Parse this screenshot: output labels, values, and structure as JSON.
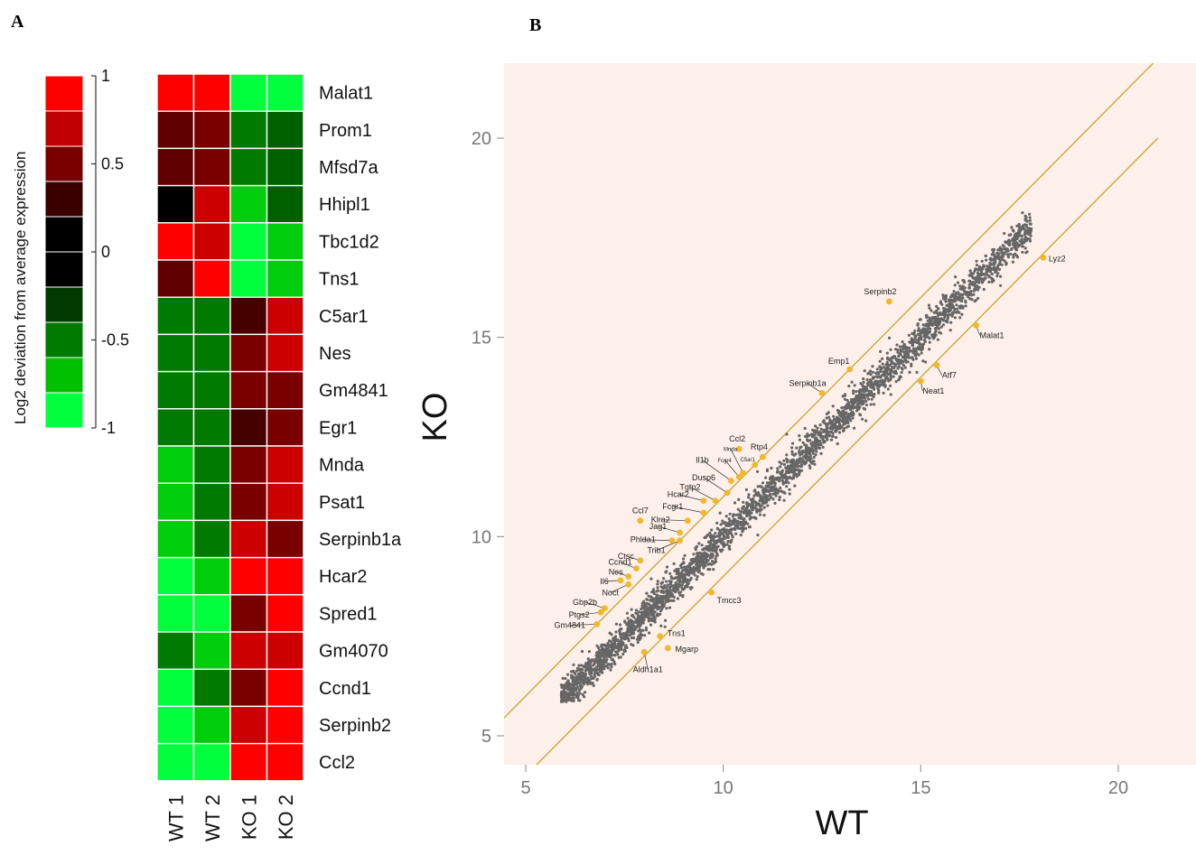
{
  "panels": {
    "a": "A",
    "b": "B"
  },
  "colors": {
    "scale": [
      "#ff0000",
      "#c00000",
      "#7a0000",
      "#3a0000",
      "#000000",
      "#000000",
      "#003a00",
      "#007a00",
      "#00c000",
      "#00ff3c"
    ],
    "plot_bg": "#fdf0ea",
    "points": "#666666",
    "highlight": "#f0b82a",
    "fold_lines": "#c9a93a"
  },
  "chart_data": [
    {
      "type": "heatmap",
      "columns": [
        "WT 1",
        "WT 2",
        "KO 1",
        "KO 2"
      ],
      "rows": [
        "Malat1",
        "Prom1",
        "Mfsd7a",
        "Hhipl1",
        "Tbc1d2",
        "Tns1",
        "C5ar1",
        "Nes",
        "Gm4841",
        "Egr1",
        "Mnda",
        "Psat1",
        "Serpinb1a",
        "Hcar2",
        "Spred1",
        "Gm4070",
        "Ccnd1",
        "Serpinb2",
        "Ccl2"
      ],
      "values": [
        [
          1.0,
          1.0,
          -1.0,
          -1.0
        ],
        [
          0.4,
          0.5,
          -0.5,
          -0.4
        ],
        [
          0.4,
          0.5,
          -0.5,
          -0.4
        ],
        [
          0.0,
          0.8,
          -0.8,
          -0.4
        ],
        [
          1.0,
          0.8,
          -1.0,
          -0.8
        ],
        [
          0.4,
          1.0,
          -1.0,
          -0.8
        ],
        [
          -0.5,
          -0.5,
          0.3,
          0.8
        ],
        [
          -0.5,
          -0.5,
          0.5,
          0.8
        ],
        [
          -0.5,
          -0.5,
          0.5,
          0.5
        ],
        [
          -0.5,
          -0.5,
          0.3,
          0.5
        ],
        [
          -0.8,
          -0.5,
          0.5,
          0.8
        ],
        [
          -0.8,
          -0.5,
          0.5,
          0.8
        ],
        [
          -0.8,
          -0.5,
          0.8,
          0.5
        ],
        [
          -1.0,
          -0.8,
          1.0,
          1.0
        ],
        [
          -1.0,
          -1.0,
          0.5,
          1.0
        ],
        [
          -0.5,
          -0.8,
          0.8,
          0.8
        ],
        [
          -1.0,
          -0.5,
          0.5,
          1.0
        ],
        [
          -1.0,
          -0.8,
          0.8,
          1.0
        ],
        [
          -1.0,
          -1.0,
          1.0,
          1.0
        ]
      ],
      "colorbar": {
        "label": "Log2 deviation from average expression",
        "ticks": [
          1,
          0.5,
          0,
          -0.5,
          -1
        ],
        "tick_labels": [
          "1",
          "0.5",
          "0",
          "-0.5",
          "-1"
        ],
        "range": [
          -1,
          1
        ]
      }
    },
    {
      "type": "scatter",
      "xlabel": "WT",
      "ylabel": "KO",
      "xlim": [
        4.2,
        22
      ],
      "ylim": [
        4.3,
        22
      ],
      "xticks": [
        5,
        10,
        15,
        20
      ],
      "yticks": [
        5,
        10,
        15,
        20
      ],
      "reference_lines": [
        {
          "intercept": 1,
          "slope": 1
        },
        {
          "intercept": -1,
          "slope": 1
        }
      ],
      "background_cloud": {
        "x_range": [
          5.9,
          17.8
        ],
        "description_only": false
      },
      "labeled_points": [
        {
          "label": "Lyz2",
          "x": 18.1,
          "y": 17.0
        },
        {
          "label": "Serpinb2",
          "x": 14.2,
          "y": 15.9
        },
        {
          "label": "Malat1",
          "x": 16.4,
          "y": 15.3
        },
        {
          "label": "Emp1",
          "x": 13.2,
          "y": 14.2
        },
        {
          "label": "Atf7",
          "x": 15.4,
          "y": 14.3
        },
        {
          "label": "Neat1",
          "x": 15.0,
          "y": 13.9
        },
        {
          "label": "Serpinb1a",
          "x": 12.5,
          "y": 13.6
        },
        {
          "label": "Ccl2",
          "x": 10.4,
          "y": 12.2
        },
        {
          "label": "Rtp4",
          "x": 11.0,
          "y": 12.0
        },
        {
          "label": "C5ar1",
          "x": 10.8,
          "y": 11.8
        },
        {
          "label": "Mnda",
          "x": 10.5,
          "y": 11.6
        },
        {
          "label": "Fcgr4",
          "x": 10.4,
          "y": 11.5
        },
        {
          "label": "Il1b",
          "x": 10.2,
          "y": 11.4
        },
        {
          "label": "Dusp6",
          "x": 10.1,
          "y": 11.1
        },
        {
          "label": "Tgtp2",
          "x": 9.8,
          "y": 10.9
        },
        {
          "label": "Hcar2",
          "x": 9.5,
          "y": 10.9
        },
        {
          "label": "Fcgr1",
          "x": 9.5,
          "y": 10.6
        },
        {
          "label": "Klra2",
          "x": 9.1,
          "y": 10.4
        },
        {
          "label": "Ccl7",
          "x": 7.9,
          "y": 10.4
        },
        {
          "label": "Jag1",
          "x": 8.9,
          "y": 10.1
        },
        {
          "label": "Phlda1",
          "x": 8.7,
          "y": 9.9
        },
        {
          "label": "Trib1",
          "x": 8.9,
          "y": 9.9
        },
        {
          "label": "Ctsc",
          "x": 7.9,
          "y": 9.4
        },
        {
          "label": "Ccnd1",
          "x": 7.8,
          "y": 9.2
        },
        {
          "label": "Nes",
          "x": 7.6,
          "y": 9.0
        },
        {
          "label": "Il6",
          "x": 7.4,
          "y": 8.9
        },
        {
          "label": "Noct",
          "x": 7.6,
          "y": 8.8
        },
        {
          "label": "Tmcc3",
          "x": 9.7,
          "y": 8.6
        },
        {
          "label": "Gbp2b",
          "x": 7.0,
          "y": 8.2
        },
        {
          "label": "Ptgs2",
          "x": 6.9,
          "y": 8.1
        },
        {
          "label": "Gm4841",
          "x": 6.8,
          "y": 7.8
        },
        {
          "label": "Tns1",
          "x": 8.4,
          "y": 7.5
        },
        {
          "label": "Mgarp",
          "x": 8.6,
          "y": 7.2
        },
        {
          "label": "Aldh1a1",
          "x": 8.0,
          "y": 7.1
        }
      ]
    }
  ]
}
